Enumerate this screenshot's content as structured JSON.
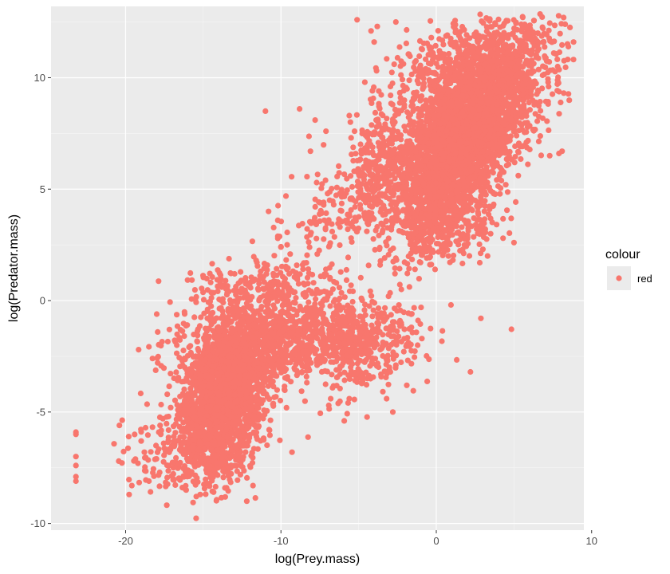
{
  "chart_data": {
    "type": "scatter",
    "xlabel": "log(Prey.mass)",
    "ylabel": "log(Predator.mass)",
    "xlim": [
      -24.8,
      9.5
    ],
    "ylim": [
      -10.3,
      13.2
    ],
    "x_ticks": [
      -20,
      -10,
      0,
      10
    ],
    "x_tick_labels": [
      "-20",
      "-10",
      "0",
      "10"
    ],
    "y_ticks": [
      -10,
      -5,
      0,
      5,
      10
    ],
    "y_tick_labels": [
      "-10",
      "-5",
      "0",
      "5",
      "10"
    ],
    "grid": true,
    "legend": {
      "title": "colour",
      "position": "right",
      "entries": [
        {
          "label": "red",
          "color": "#F8766D"
        }
      ]
    },
    "point_color": "#F8766D",
    "clusters": [
      {
        "cx": 1.8,
        "cy": 7.6,
        "sx": 2.3,
        "sy": 1.6,
        "rho": 0.55,
        "n": 2600
      },
      {
        "cx": 2.8,
        "cy": 10.8,
        "sx": 2.4,
        "sy": 1.0,
        "rho": 0.3,
        "n": 700
      },
      {
        "cx": 0.5,
        "cy": 4.2,
        "sx": 1.8,
        "sy": 1.2,
        "rho": 0.4,
        "n": 800
      },
      {
        "cx": -4.0,
        "cy": 6.0,
        "sx": 1.0,
        "sy": 1.6,
        "rho": 0.5,
        "n": 260
      },
      {
        "cx": -7.0,
        "cy": 4.0,
        "sx": 1.8,
        "sy": 1.6,
        "rho": 0.6,
        "n": 120
      },
      {
        "cx": -13.7,
        "cy": -4.3,
        "sx": 1.4,
        "sy": 1.6,
        "rho": 0.3,
        "n": 1500
      },
      {
        "cx": -14.5,
        "cy": -6.5,
        "sx": 1.6,
        "sy": 1.0,
        "rho": 0.2,
        "n": 350
      },
      {
        "cx": -9.0,
        "cy": -1.6,
        "sx": 3.8,
        "sy": 0.8,
        "rho": 0.1,
        "n": 900
      },
      {
        "cx": -11.0,
        "cy": 0.5,
        "sx": 2.5,
        "sy": 0.6,
        "rho": 0.1,
        "n": 250
      },
      {
        "cx": -5.0,
        "cy": -2.5,
        "sx": 1.8,
        "sy": 1.0,
        "rho": 0.3,
        "n": 180
      },
      {
        "cx": -12.0,
        "cy": -2.5,
        "sx": 2.0,
        "sy": 1.2,
        "rho": 0.3,
        "n": 300
      },
      {
        "cx": -17.5,
        "cy": -7.0,
        "sx": 1.8,
        "sy": 0.9,
        "rho": 0.2,
        "n": 90
      }
    ],
    "outliers": [
      [
        -23.2,
        -6.0
      ],
      [
        -23.2,
        -5.9
      ],
      [
        -23.2,
        -7.0
      ],
      [
        -23.2,
        -7.4
      ],
      [
        -23.2,
        -7.9
      ],
      [
        -23.2,
        -8.1
      ],
      [
        -20.4,
        -5.6
      ],
      [
        -19.8,
        -6.1
      ],
      [
        -19.0,
        -6.3
      ],
      [
        -19.6,
        -8.3
      ],
      [
        -18.5,
        -8.1
      ],
      [
        -17.1,
        -4.8
      ],
      [
        -17.6,
        -5.3
      ],
      [
        -16.7,
        -2.0
      ],
      [
        -16.2,
        -0.6
      ],
      [
        -16.1,
        -8.5
      ],
      [
        -15.2,
        -8.7
      ],
      [
        -12.2,
        -9.0
      ],
      [
        -11.8,
        -8.3
      ],
      [
        -13.5,
        -8.4
      ],
      [
        -11.0,
        8.5
      ],
      [
        -8.8,
        8.6
      ],
      [
        -7.8,
        8.1
      ],
      [
        -7.1,
        7.6
      ],
      [
        -5.6,
        8.3
      ],
      [
        -8.1,
        6.7
      ],
      [
        -10.8,
        4.0
      ],
      [
        -10.2,
        3.6
      ],
      [
        -9.6,
        2.5
      ],
      [
        -10.0,
        2.4
      ],
      [
        -7.0,
        4.8
      ],
      [
        -6.6,
        4.3
      ],
      [
        -6.2,
        3.3
      ],
      [
        -6.7,
        3.1
      ],
      [
        -5.7,
        3.2
      ],
      [
        -9.6,
        1.4
      ],
      [
        -9.0,
        1.0
      ],
      [
        -7.9,
        0.8
      ],
      [
        -2.8,
        -5.0
      ],
      [
        -3.2,
        -4.4
      ],
      [
        -5.6,
        -4.4
      ],
      [
        -6.8,
        -4.4
      ],
      [
        -2.9,
        -1.6
      ],
      [
        -1.6,
        -1.2
      ],
      [
        -1.2,
        -2.0
      ],
      [
        -2.6,
        -2.9
      ],
      [
        -1.9,
        -3.8
      ],
      [
        2.2,
        -3.2
      ],
      [
        2.8,
        1.7
      ],
      [
        3.3,
        2.0
      ],
      [
        3.0,
        2.3
      ],
      [
        4.3,
        2.8
      ],
      [
        5.0,
        2.6
      ],
      [
        3.5,
        3.0
      ],
      [
        7.9,
        6.6
      ],
      [
        8.1,
        6.7
      ],
      [
        7.3,
        6.5
      ],
      [
        8.3,
        12.4
      ],
      [
        8.2,
        12.7
      ],
      [
        -5.1,
        12.6
      ],
      [
        -4.2,
        12.1
      ],
      [
        -3.8,
        12.3
      ],
      [
        -2.6,
        12.5
      ],
      [
        -4.0,
        11.6
      ],
      [
        -4.6,
        9.8
      ],
      [
        -3.7,
        9.4
      ],
      [
        -2.3,
        9.1
      ]
    ]
  }
}
